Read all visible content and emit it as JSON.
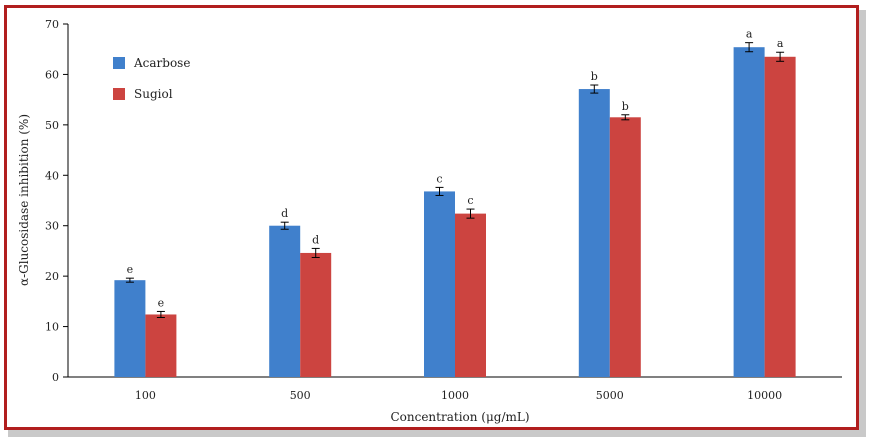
{
  "chart_data": {
    "type": "bar",
    "categories": [
      "100",
      "500",
      "1000",
      "5000",
      "10000"
    ],
    "series": [
      {
        "name": "Acarbose",
        "color": "#4080cc",
        "values": [
          19.2,
          30.0,
          36.8,
          57.1,
          65.4
        ],
        "errors": [
          0.4,
          0.7,
          0.8,
          0.8,
          0.9
        ],
        "labels": [
          "e",
          "d",
          "c",
          "b",
          "a"
        ]
      },
      {
        "name": "Sugiol",
        "color": "#cc4440",
        "values": [
          12.4,
          24.6,
          32.4,
          51.5,
          63.5
        ],
        "errors": [
          0.6,
          0.9,
          0.9,
          0.5,
          0.9
        ],
        "labels": [
          "e",
          "d",
          "c",
          "b",
          "a"
        ]
      }
    ],
    "xlabel": "Concentration (μg/mL)",
    "ylabel": "α-Glucosidase inhibition (%)",
    "ylim": [
      0,
      70
    ],
    "yticks": [
      0,
      10,
      20,
      30,
      40,
      50,
      60,
      70
    ],
    "grid": false,
    "legend_position": "top-left"
  }
}
